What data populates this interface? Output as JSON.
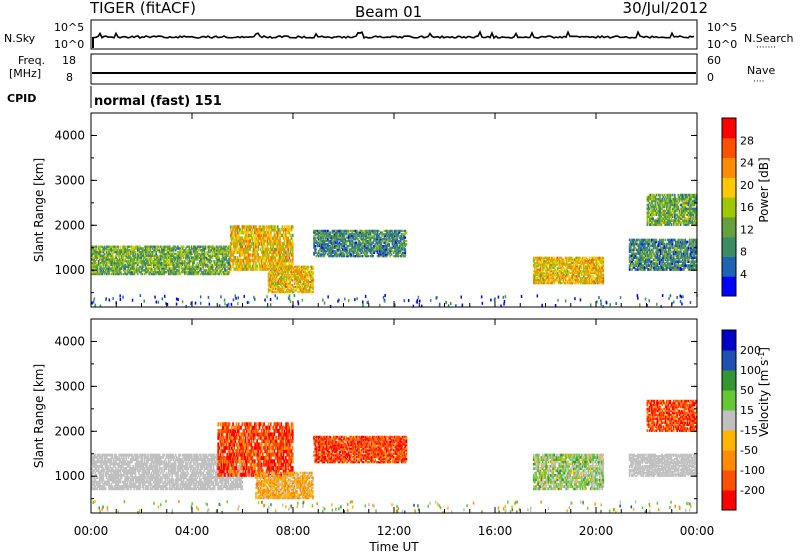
{
  "header": {
    "radar": "TIGER (fitACF)",
    "beam": "Beam 01",
    "date": "30/Jul/2012"
  },
  "top_strips": {
    "nsky_label": "N.Sky",
    "nsearch_label": "N.Search",
    "nsearch_dots": "·······",
    "freq_label_line1": "Freq.",
    "freq_label_line2": "[MHz]",
    "nave_label": "Nave",
    "nave_dots": "····",
    "cpid_label": "CPID",
    "cpid_value": "normal (fast) 151",
    "nsky_ticks": [
      "10^5",
      "10^0"
    ],
    "nsearch_ticks": [
      "10^5",
      "10^0"
    ],
    "freq_ticks": [
      "18",
      "8"
    ],
    "nave_ticks": [
      "60",
      "0"
    ]
  },
  "colors": {
    "power_scale": [
      "#0000ff",
      "#1e64b4",
      "#3c8c64",
      "#64a03c",
      "#a0c800",
      "#ffc800",
      "#ff8c00",
      "#ff5000",
      "#ff0000"
    ],
    "velocity_scale": [
      "#ff0000",
      "#ff5000",
      "#ff8c00",
      "#ffb400",
      "#c0c0c0",
      "#64c832",
      "#329632",
      "#1e50b4",
      "#0000c8"
    ],
    "ground_scatter": "#c0c0c0"
  },
  "chart_data": [
    {
      "type": "heatmap",
      "title": "Power",
      "ylabel": "Slant Range [km]",
      "xlabel": "",
      "xlim": [
        "00:00",
        "24:00"
      ],
      "ylim": [
        180,
        4500
      ],
      "yticks": [
        "1000",
        "2000",
        "3000",
        "4000"
      ],
      "colorbar": {
        "label": "Power [dB]",
        "range": [
          0,
          32
        ],
        "ticks": [
          "4",
          "8",
          "12",
          "16",
          "20",
          "24",
          "28"
        ]
      },
      "echo_regions": [
        {
          "t_start": 0.0,
          "t_end": 5.5,
          "range_low": 900,
          "range_high": 1550,
          "power_db": 12
        },
        {
          "t_start": 5.5,
          "t_end": 8.0,
          "range_low": 1000,
          "range_high": 2000,
          "power_db": 20
        },
        {
          "t_start": 7.0,
          "t_end": 8.8,
          "range_low": 500,
          "range_high": 1100,
          "power_db": 20
        },
        {
          "t_start": 8.8,
          "t_end": 12.5,
          "range_low": 1300,
          "range_high": 1900,
          "power_db": 8
        },
        {
          "t_start": 17.5,
          "t_end": 20.3,
          "range_low": 700,
          "range_high": 1300,
          "power_db": 20
        },
        {
          "t_start": 21.3,
          "t_end": 24.0,
          "range_low": 1000,
          "range_high": 1700,
          "power_db": 8
        },
        {
          "t_start": 22.0,
          "t_end": 24.0,
          "range_low": 2000,
          "range_high": 2700,
          "power_db": 12
        }
      ]
    },
    {
      "type": "heatmap",
      "title": "Velocity",
      "ylabel": "Slant Range [km]",
      "xlabel": "Time UT",
      "xlim": [
        "00:00",
        "24:00"
      ],
      "ylim": [
        180,
        4500
      ],
      "yticks": [
        "1000",
        "2000",
        "3000",
        "4000"
      ],
      "xticks": [
        "00:00",
        "04:00",
        "08:00",
        "12:00",
        "16:00",
        "20:00",
        "00:00"
      ],
      "colorbar": {
        "label_main": "Velocity [m s",
        "label_exp": "-1",
        "label_close": "]",
        "range": [
          -250,
          250
        ],
        "ticks": [
          "200",
          "100",
          "50",
          "15",
          "-15",
          "-50",
          "-100",
          "-200"
        ]
      },
      "echo_regions": [
        {
          "t_start": 0.0,
          "t_end": 6.0,
          "range_low": 700,
          "range_high": 1500,
          "velocity": 0,
          "ground_scatter": true
        },
        {
          "t_start": 5.0,
          "t_end": 8.0,
          "range_low": 1000,
          "range_high": 2200,
          "velocity": -200
        },
        {
          "t_start": 6.5,
          "t_end": 8.8,
          "range_low": 500,
          "range_high": 1100,
          "velocity": -80
        },
        {
          "t_start": 8.8,
          "t_end": 12.5,
          "range_low": 1300,
          "range_high": 1900,
          "velocity": -200
        },
        {
          "t_start": 17.5,
          "t_end": 20.3,
          "range_low": 700,
          "range_high": 1500,
          "velocity": 30
        },
        {
          "t_start": 21.3,
          "t_end": 24.0,
          "range_low": 1000,
          "range_high": 1500,
          "velocity": 0,
          "ground_scatter": true
        },
        {
          "t_start": 22.0,
          "t_end": 24.0,
          "range_low": 2000,
          "range_high": 2700,
          "velocity": -200
        }
      ]
    }
  ]
}
